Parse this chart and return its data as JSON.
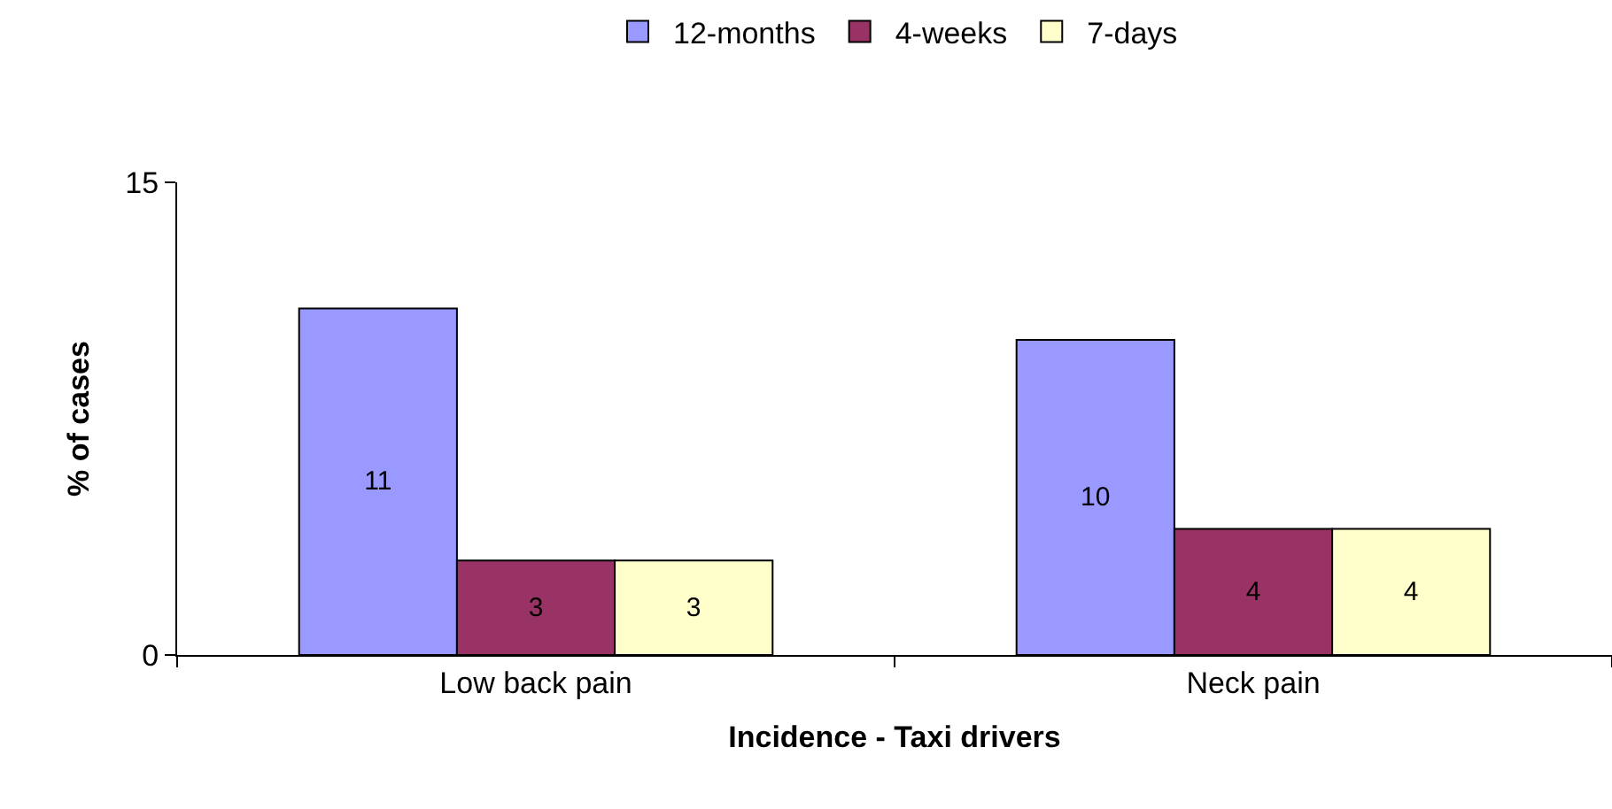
{
  "chart_data": {
    "type": "bar",
    "xlabel": "Incidence - Taxi drivers",
    "ylabel": "% of cases",
    "categories": [
      "Low back pain",
      "Neck pain"
    ],
    "series": [
      {
        "name": "12-months",
        "color": "#9999ff",
        "values": [
          11,
          10
        ]
      },
      {
        "name": "4-weeks",
        "color": "#993366",
        "values": [
          3,
          4
        ]
      },
      {
        "name": "7-days",
        "color": "#ffffcc",
        "values": [
          3,
          4
        ]
      }
    ],
    "ylim": [
      0,
      15
    ],
    "yticks": [
      0,
      15
    ],
    "legend": "top",
    "data_labels": true
  }
}
